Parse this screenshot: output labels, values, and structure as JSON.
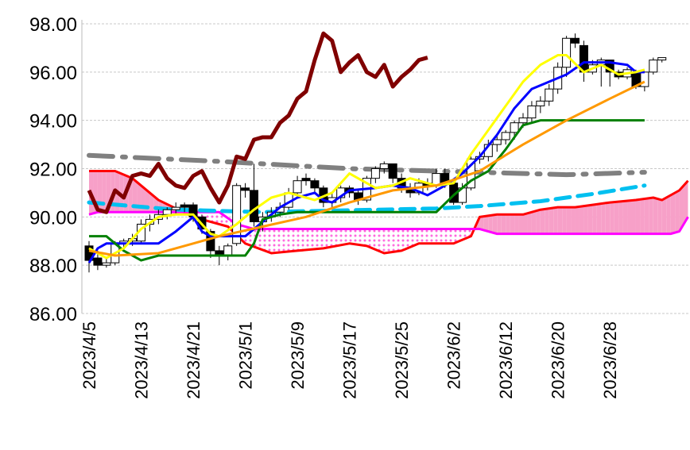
{
  "chart_data": {
    "type": "candlestick-ichimoku",
    "title": "",
    "ylim": [
      86,
      98
    ],
    "yticks": [
      "86.00",
      "88.00",
      "90.00",
      "92.00",
      "94.00",
      "96.00",
      "98.00"
    ],
    "ytick_values": [
      86,
      88,
      90,
      92,
      94,
      96,
      98
    ],
    "xtick_labels": [
      "2023/4/5",
      "2023/4/13",
      "2023/4/21",
      "2023/5/1",
      "2023/5/9",
      "2023/5/17",
      "2023/5/25",
      "2023/6/2",
      "2023/6/12",
      "2023/6/20",
      "2023/6/28"
    ],
    "xtick_index": [
      0,
      6,
      12,
      18,
      24,
      30,
      36,
      42,
      48,
      54,
      60
    ],
    "x_count": 70,
    "grid": true,
    "candles_ohlc": [
      [
        88.8,
        89.0,
        87.7,
        88.2
      ],
      [
        88.3,
        88.6,
        87.8,
        88.0
      ],
      [
        88.0,
        88.3,
        87.9,
        88.1
      ],
      [
        88.1,
        89.0,
        88.0,
        88.9
      ],
      [
        88.9,
        89.1,
        88.7,
        89.0
      ],
      [
        89.0,
        89.3,
        88.8,
        89.1
      ],
      [
        89.0,
        89.9,
        88.9,
        89.7
      ],
      [
        89.7,
        90.1,
        89.4,
        89.9
      ],
      [
        89.9,
        90.3,
        89.7,
        90.1
      ],
      [
        90.1,
        90.4,
        89.9,
        90.3
      ],
      [
        90.3,
        90.6,
        90.1,
        90.4
      ],
      [
        90.5,
        90.6,
        90.2,
        90.4
      ],
      [
        90.5,
        90.6,
        89.8,
        90.0
      ],
      [
        90.0,
        90.1,
        89.3,
        89.5
      ],
      [
        89.4,
        89.5,
        88.3,
        88.6
      ],
      [
        88.6,
        88.8,
        88.0,
        88.4
      ],
      [
        88.4,
        88.9,
        88.2,
        88.8
      ],
      [
        88.9,
        91.4,
        88.8,
        91.3
      ],
      [
        91.2,
        91.4,
        90.8,
        91.1
      ],
      [
        91.1,
        92.2,
        89.6,
        89.8
      ],
      [
        89.8,
        90.2,
        89.4,
        90.0
      ],
      [
        90.0,
        90.4,
        89.8,
        90.2
      ],
      [
        90.2,
        90.6,
        90.0,
        90.4
      ],
      [
        90.4,
        91.2,
        90.3,
        91.0
      ],
      [
        91.0,
        91.7,
        90.8,
        91.5
      ],
      [
        91.6,
        91.8,
        91.3,
        91.5
      ],
      [
        91.5,
        91.6,
        91.0,
        91.2
      ],
      [
        91.2,
        91.3,
        90.4,
        90.6
      ],
      [
        90.6,
        91.0,
        90.4,
        90.8
      ],
      [
        90.8,
        91.3,
        90.6,
        91.2
      ],
      [
        91.2,
        91.3,
        90.8,
        91.0
      ],
      [
        91.0,
        91.1,
        90.5,
        90.7
      ],
      [
        90.7,
        91.7,
        90.6,
        91.6
      ],
      [
        91.6,
        92.1,
        91.4,
        92.0
      ],
      [
        92.0,
        92.3,
        91.8,
        92.2
      ],
      [
        92.2,
        92.2,
        91.4,
        91.6
      ],
      [
        91.6,
        91.8,
        91.0,
        91.2
      ],
      [
        91.2,
        91.4,
        90.8,
        91.0
      ],
      [
        91.0,
        91.6,
        90.9,
        91.4
      ],
      [
        91.4,
        91.6,
        91.1,
        91.3
      ],
      [
        91.3,
        92.0,
        91.2,
        91.8
      ],
      [
        91.8,
        92.0,
        91.2,
        91.4
      ],
      [
        91.4,
        91.5,
        90.5,
        90.6
      ],
      [
        90.6,
        91.4,
        90.5,
        91.2
      ],
      [
        91.2,
        92.5,
        91.1,
        92.4
      ],
      [
        92.4,
        92.7,
        92.2,
        92.5
      ],
      [
        92.5,
        93.2,
        92.3,
        93.0
      ],
      [
        93.0,
        93.4,
        92.7,
        93.2
      ],
      [
        93.2,
        93.6,
        93.0,
        93.5
      ],
      [
        93.5,
        94.0,
        93.2,
        93.9
      ],
      [
        93.9,
        94.3,
        93.7,
        94.1
      ],
      [
        94.1,
        94.8,
        93.9,
        94.6
      ],
      [
        94.6,
        95.0,
        94.3,
        94.8
      ],
      [
        94.8,
        95.5,
        94.6,
        95.3
      ],
      [
        95.3,
        96.4,
        95.1,
        96.2
      ],
      [
        96.2,
        97.5,
        95.8,
        97.4
      ],
      [
        97.4,
        97.6,
        97.0,
        97.2
      ],
      [
        97.1,
        97.3,
        95.6,
        96.0
      ],
      [
        96.0,
        96.5,
        95.9,
        96.3
      ],
      [
        96.3,
        96.6,
        95.4,
        96.5
      ],
      [
        96.5,
        96.5,
        95.4,
        96.0
      ],
      [
        96.0,
        96.1,
        95.7,
        95.8
      ],
      [
        95.8,
        96.2,
        95.7,
        96.1
      ],
      [
        96.0,
        96.1,
        95.3,
        95.4
      ],
      [
        95.4,
        96.0,
        95.2,
        96.0
      ],
      [
        96.0,
        96.6,
        95.9,
        96.5
      ],
      [
        96.5,
        96.6,
        96.4,
        96.6
      ]
    ],
    "series": [
      {
        "name": "chikou",
        "color": "#800000",
        "points": [
          [
            0,
            91.1
          ],
          [
            1,
            90.3
          ],
          [
            2,
            90.2
          ],
          [
            3,
            91.1
          ],
          [
            4,
            90.8
          ],
          [
            5,
            91.7
          ],
          [
            6,
            91.8
          ],
          [
            7,
            91.7
          ],
          [
            8,
            92.2
          ],
          [
            9,
            91.6
          ],
          [
            10,
            91.3
          ],
          [
            11,
            91.2
          ],
          [
            12,
            91.7
          ],
          [
            13,
            91.9
          ],
          [
            14,
            91.2
          ],
          [
            15,
            90.6
          ],
          [
            16,
            91.3
          ],
          [
            17,
            92.5
          ],
          [
            18,
            92.4
          ],
          [
            19,
            93.2
          ],
          [
            20,
            93.3
          ],
          [
            21,
            93.3
          ],
          [
            22,
            93.9
          ],
          [
            23,
            94.2
          ],
          [
            24,
            94.9
          ],
          [
            25,
            95.2
          ],
          [
            26,
            96.5
          ],
          [
            27,
            97.6
          ],
          [
            28,
            97.3
          ],
          [
            29,
            96.0
          ],
          [
            30,
            96.4
          ],
          [
            31,
            96.7
          ],
          [
            32,
            96.0
          ],
          [
            33,
            95.8
          ],
          [
            34,
            96.3
          ],
          [
            35,
            95.4
          ],
          [
            36,
            95.8
          ],
          [
            37,
            96.1
          ],
          [
            38,
            96.5
          ],
          [
            39,
            96.6
          ]
        ]
      },
      {
        "name": "tenkan",
        "color": "#0000ff",
        "points": [
          [
            0,
            88.1
          ],
          [
            1,
            88.7
          ],
          [
            2,
            88.9
          ],
          [
            8,
            88.9
          ],
          [
            10,
            89.4
          ],
          [
            12,
            90.0
          ],
          [
            13,
            89.4
          ],
          [
            14,
            89.2
          ],
          [
            18,
            89.2
          ],
          [
            20,
            89.8
          ],
          [
            22,
            90.4
          ],
          [
            24,
            90.8
          ],
          [
            26,
            91.0
          ],
          [
            27,
            90.7
          ],
          [
            28,
            90.6
          ],
          [
            30,
            91.1
          ],
          [
            33,
            91.2
          ],
          [
            35,
            91.3
          ],
          [
            37,
            91.2
          ],
          [
            39,
            90.9
          ],
          [
            41,
            91.3
          ],
          [
            43,
            91.8
          ],
          [
            45,
            92.5
          ],
          [
            47,
            93.4
          ],
          [
            49,
            94.5
          ],
          [
            51,
            95.3
          ],
          [
            53,
            95.6
          ],
          [
            55,
            95.9
          ],
          [
            57,
            96.4
          ],
          [
            60,
            96.4
          ],
          [
            62,
            96.3
          ],
          [
            63,
            96.0
          ],
          [
            64,
            96.0
          ]
        ]
      },
      {
        "name": "kijun",
        "color": "#008000",
        "points": [
          [
            0,
            89.2
          ],
          [
            2,
            89.2
          ],
          [
            4,
            88.6
          ],
          [
            6,
            88.2
          ],
          [
            8,
            88.4
          ],
          [
            18,
            88.4
          ],
          [
            19,
            88.9
          ],
          [
            20,
            89.9
          ],
          [
            22,
            90.1
          ],
          [
            24,
            90.2
          ],
          [
            40,
            90.2
          ],
          [
            42,
            90.9
          ],
          [
            44,
            91.5
          ],
          [
            46,
            91.9
          ],
          [
            48,
            92.8
          ],
          [
            50,
            93.8
          ],
          [
            52,
            94.0
          ],
          [
            64,
            94.0
          ]
        ]
      },
      {
        "name": "ma-short",
        "color": "#ffff00",
        "points": [
          [
            0,
            88.7
          ],
          [
            2,
            88.3
          ],
          [
            4,
            88.7
          ],
          [
            6,
            89.5
          ],
          [
            8,
            90.0
          ],
          [
            10,
            90.1
          ],
          [
            12,
            90.1
          ],
          [
            14,
            89.3
          ],
          [
            15,
            89.2
          ],
          [
            17,
            89.7
          ],
          [
            19,
            90.3
          ],
          [
            21,
            90.8
          ],
          [
            23,
            91.0
          ],
          [
            25,
            90.8
          ],
          [
            26,
            90.7
          ],
          [
            28,
            91.0
          ],
          [
            30,
            91.8
          ],
          [
            31,
            91.6
          ],
          [
            33,
            91.2
          ],
          [
            35,
            91.3
          ],
          [
            37,
            91.6
          ],
          [
            40,
            91.3
          ],
          [
            42,
            91.4
          ],
          [
            44,
            92.6
          ],
          [
            46,
            93.6
          ],
          [
            48,
            94.6
          ],
          [
            50,
            95.6
          ],
          [
            52,
            96.3
          ],
          [
            54,
            96.7
          ],
          [
            55,
            96.7
          ],
          [
            57,
            96.0
          ],
          [
            59,
            96.3
          ],
          [
            61,
            95.9
          ],
          [
            63,
            96.0
          ],
          [
            64,
            96.1
          ]
        ]
      },
      {
        "name": "ma-mid",
        "color": "#ff9900",
        "points": [
          [
            0,
            88.6
          ],
          [
            3,
            88.4
          ],
          [
            8,
            88.5
          ],
          [
            12,
            88.9
          ],
          [
            15,
            89.2
          ],
          [
            20,
            89.6
          ],
          [
            25,
            90.0
          ],
          [
            30,
            90.6
          ],
          [
            35,
            91.1
          ],
          [
            40,
            91.3
          ],
          [
            45,
            91.9
          ],
          [
            50,
            93.0
          ],
          [
            55,
            94.0
          ],
          [
            60,
            94.9
          ],
          [
            64,
            95.6
          ]
        ]
      },
      {
        "name": "ma-long-dashdot",
        "color": "#808080",
        "dash": "30 12 4 12",
        "width": 6,
        "points": [
          [
            0,
            92.55
          ],
          [
            15,
            92.3
          ],
          [
            30,
            92.0
          ],
          [
            45,
            91.85
          ],
          [
            55,
            91.75
          ],
          [
            64,
            91.85
          ]
        ]
      },
      {
        "name": "ma-cyan-dashed",
        "color": "#00c0f0",
        "dash": "18 10",
        "width": 5,
        "points": [
          [
            0,
            90.6
          ],
          [
            10,
            90.3
          ],
          [
            20,
            90.2
          ],
          [
            40,
            90.35
          ],
          [
            45,
            90.45
          ],
          [
            52,
            90.65
          ],
          [
            58,
            90.95
          ],
          [
            64,
            91.3
          ]
        ]
      }
    ],
    "senkou_a": {
      "color": "#ff0000",
      "points": [
        [
          0,
          91.9
        ],
        [
          3,
          91.9
        ],
        [
          5,
          91.6
        ],
        [
          8,
          90.7
        ],
        [
          12,
          90.0
        ],
        [
          16,
          89.6
        ],
        [
          18,
          88.9
        ],
        [
          21,
          88.5
        ],
        [
          24,
          88.6
        ],
        [
          27,
          88.7
        ],
        [
          30,
          88.9
        ],
        [
          32,
          88.8
        ],
        [
          34,
          88.5
        ],
        [
          36,
          88.6
        ],
        [
          38,
          88.9
        ],
        [
          40,
          88.9
        ],
        [
          42,
          88.9
        ],
        [
          44,
          89.2
        ],
        [
          45,
          90.0
        ],
        [
          47,
          90.1
        ],
        [
          50,
          90.1
        ],
        [
          52,
          90.3
        ],
        [
          54,
          90.4
        ],
        [
          56,
          90.4
        ],
        [
          58,
          90.5
        ],
        [
          60,
          90.6
        ],
        [
          63,
          90.7
        ],
        [
          65,
          90.8
        ],
        [
          66,
          90.7
        ],
        [
          68,
          91.1
        ],
        [
          69,
          91.5
        ]
      ]
    },
    "senkou_b": {
      "color": "#ff00ff",
      "points": [
        [
          0,
          90.1
        ],
        [
          1,
          90.2
        ],
        [
          15,
          90.2
        ],
        [
          17,
          89.7
        ],
        [
          19,
          89.5
        ],
        [
          45,
          89.5
        ],
        [
          47,
          89.3
        ],
        [
          67,
          89.3
        ],
        [
          68,
          89.4
        ],
        [
          69,
          90.0
        ]
      ]
    },
    "cloud_colors": {
      "bull": "#f7a0c8",
      "bear": "#ff66dd"
    }
  }
}
